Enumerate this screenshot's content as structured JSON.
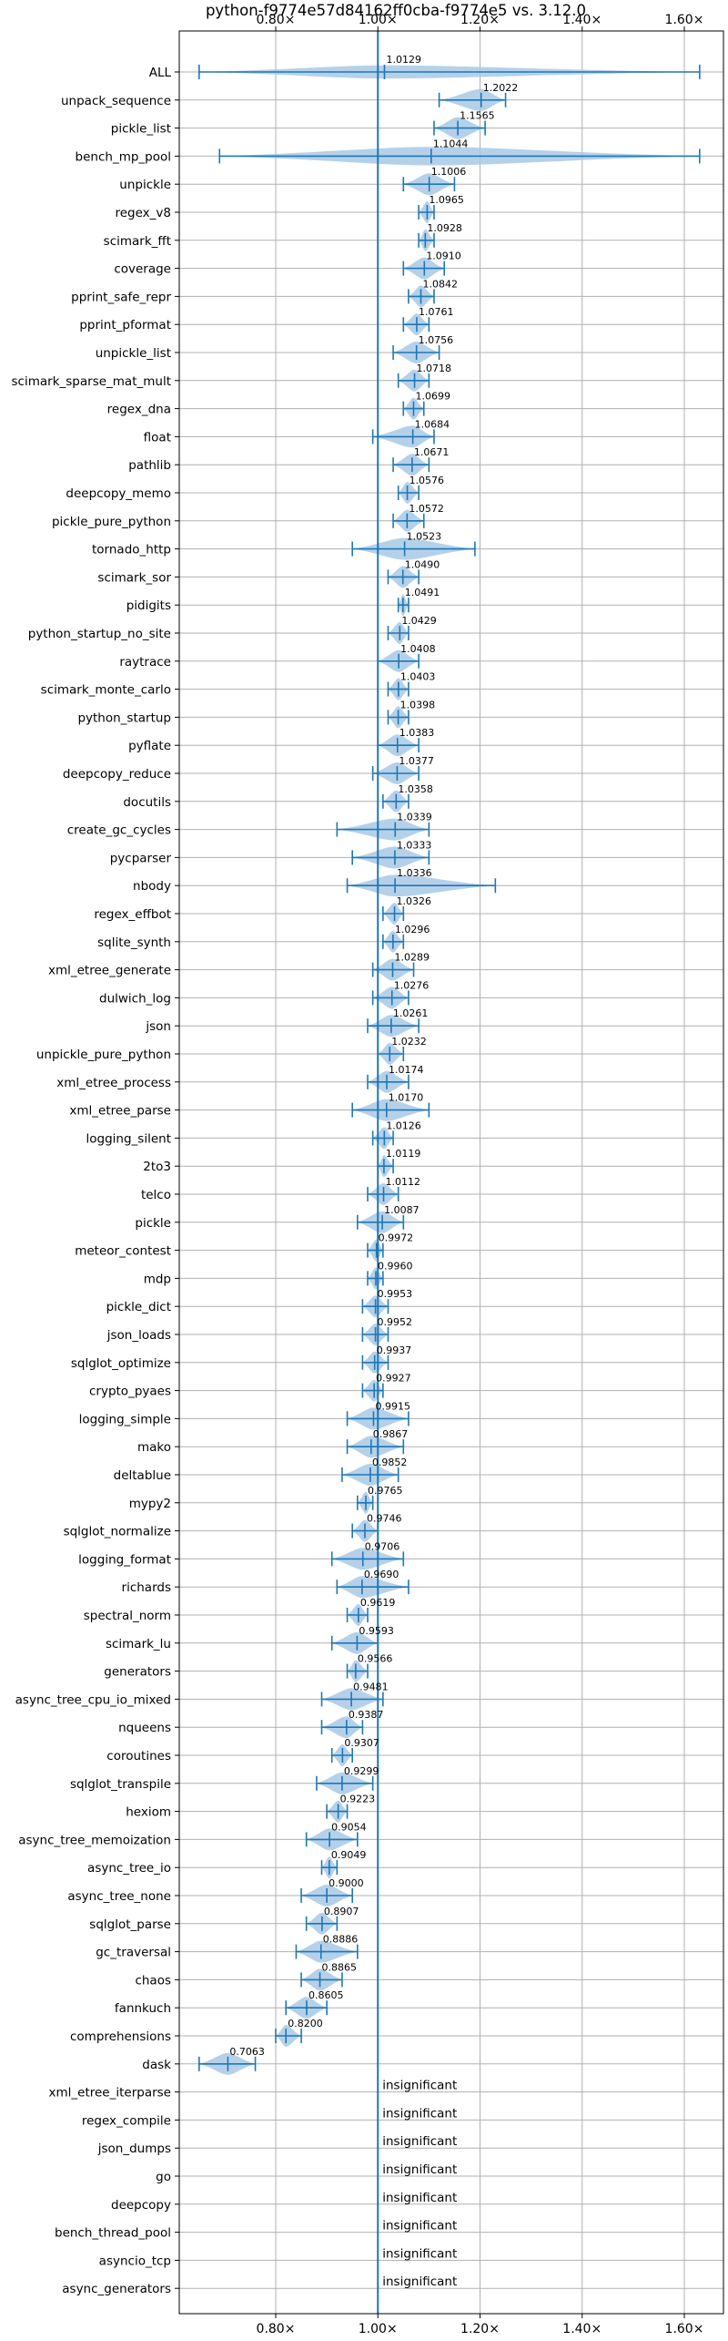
{
  "chart_data": {
    "type": "violin",
    "title": "python-f9774e57d84162ff0cba-f9774e5 vs. 3.12.0",
    "xlim": [
      0.6,
      1.65
    ],
    "xticks": [
      0.8,
      1.0,
      1.2,
      1.4,
      1.6
    ],
    "xtick_labels": [
      "0.80×",
      "1.00×",
      "1.20×",
      "1.40×",
      "1.60×"
    ],
    "reference_line": 1.0,
    "grid": true,
    "colors": {
      "violin": "#a8c9e6",
      "line": "#1f77b4",
      "grid": "#b0b0b0",
      "frame": "#000000"
    },
    "benchmarks": [
      {
        "name": "ALL",
        "value": 1.0129,
        "label": "1.0129",
        "min": 0.65,
        "max": 1.63,
        "width": 0.6
      },
      {
        "name": "unpack_sequence",
        "value": 1.2022,
        "label": "1.2022",
        "min": 1.12,
        "max": 1.25
      },
      {
        "name": "pickle_list",
        "value": 1.1565,
        "label": "1.1565",
        "min": 1.11,
        "max": 1.21
      },
      {
        "name": "bench_mp_pool",
        "value": 1.1044,
        "label": "1.1044",
        "min": 0.69,
        "max": 1.63,
        "width": 0.85
      },
      {
        "name": "unpickle",
        "value": 1.1006,
        "label": "1.1006",
        "min": 1.05,
        "max": 1.15
      },
      {
        "name": "regex_v8",
        "value": 1.0965,
        "label": "1.0965",
        "min": 1.08,
        "max": 1.11
      },
      {
        "name": "scimark_fft",
        "value": 1.0928,
        "label": "1.0928",
        "min": 1.08,
        "max": 1.11
      },
      {
        "name": "coverage",
        "value": 1.091,
        "label": "1.0910",
        "min": 1.05,
        "max": 1.13
      },
      {
        "name": "pprint_safe_repr",
        "value": 1.0842,
        "label": "1.0842",
        "min": 1.06,
        "max": 1.11
      },
      {
        "name": "pprint_pformat",
        "value": 1.0761,
        "label": "1.0761",
        "min": 1.05,
        "max": 1.1
      },
      {
        "name": "unpickle_list",
        "value": 1.0756,
        "label": "1.0756",
        "min": 1.03,
        "max": 1.12
      },
      {
        "name": "scimark_sparse_mat_mult",
        "value": 1.0718,
        "label": "1.0718",
        "min": 1.04,
        "max": 1.1
      },
      {
        "name": "regex_dna",
        "value": 1.0699,
        "label": "1.0699",
        "min": 1.05,
        "max": 1.09
      },
      {
        "name": "float",
        "value": 1.0684,
        "label": "1.0684",
        "min": 0.99,
        "max": 1.11
      },
      {
        "name": "pathlib",
        "value": 1.0671,
        "label": "1.0671",
        "min": 1.03,
        "max": 1.1
      },
      {
        "name": "deepcopy_memo",
        "value": 1.0576,
        "label": "1.0576",
        "min": 1.04,
        "max": 1.08
      },
      {
        "name": "pickle_pure_python",
        "value": 1.0572,
        "label": "1.0572",
        "min": 1.03,
        "max": 1.09
      },
      {
        "name": "tornado_http",
        "value": 1.0523,
        "label": "1.0523",
        "min": 0.95,
        "max": 1.19
      },
      {
        "name": "scimark_sor",
        "value": 1.049,
        "label": "1.0490",
        "min": 1.02,
        "max": 1.08
      },
      {
        "name": "pidigits",
        "value": 1.0491,
        "label": "1.0491",
        "min": 1.04,
        "max": 1.06
      },
      {
        "name": "python_startup_no_site",
        "value": 1.0429,
        "label": "1.0429",
        "min": 1.02,
        "max": 1.06
      },
      {
        "name": "raytrace",
        "value": 1.0408,
        "label": "1.0408",
        "min": 1.0,
        "max": 1.08
      },
      {
        "name": "scimark_monte_carlo",
        "value": 1.0403,
        "label": "1.0403",
        "min": 1.02,
        "max": 1.06
      },
      {
        "name": "python_startup",
        "value": 1.0398,
        "label": "1.0398",
        "min": 1.02,
        "max": 1.06
      },
      {
        "name": "pyflate",
        "value": 1.0383,
        "label": "1.0383",
        "min": 1.0,
        "max": 1.08
      },
      {
        "name": "deepcopy_reduce",
        "value": 1.0377,
        "label": "1.0377",
        "min": 0.99,
        "max": 1.08
      },
      {
        "name": "docutils",
        "value": 1.0358,
        "label": "1.0358",
        "min": 1.01,
        "max": 1.06
      },
      {
        "name": "create_gc_cycles",
        "value": 1.0339,
        "label": "1.0339",
        "min": 0.92,
        "max": 1.1
      },
      {
        "name": "pycparser",
        "value": 1.0333,
        "label": "1.0333",
        "min": 0.95,
        "max": 1.1
      },
      {
        "name": "nbody",
        "value": 1.0336,
        "label": "1.0336",
        "min": 0.94,
        "max": 1.23
      },
      {
        "name": "regex_effbot",
        "value": 1.0326,
        "label": "1.0326",
        "min": 1.01,
        "max": 1.05
      },
      {
        "name": "sqlite_synth",
        "value": 1.0296,
        "label": "1.0296",
        "min": 1.01,
        "max": 1.05
      },
      {
        "name": "xml_etree_generate",
        "value": 1.0289,
        "label": "1.0289",
        "min": 0.99,
        "max": 1.07
      },
      {
        "name": "dulwich_log",
        "value": 1.0276,
        "label": "1.0276",
        "min": 0.99,
        "max": 1.06
      },
      {
        "name": "json",
        "value": 1.0261,
        "label": "1.0261",
        "min": 0.98,
        "max": 1.08
      },
      {
        "name": "unpickle_pure_python",
        "value": 1.0232,
        "label": "1.0232",
        "min": 1.0,
        "max": 1.05
      },
      {
        "name": "xml_etree_process",
        "value": 1.0174,
        "label": "1.0174",
        "min": 0.98,
        "max": 1.06
      },
      {
        "name": "xml_etree_parse",
        "value": 1.017,
        "label": "1.0170",
        "min": 0.95,
        "max": 1.1
      },
      {
        "name": "logging_silent",
        "value": 1.0126,
        "label": "1.0126",
        "min": 0.99,
        "max": 1.03
      },
      {
        "name": "2to3",
        "value": 1.0119,
        "label": "1.0119",
        "min": 1.0,
        "max": 1.03
      },
      {
        "name": "telco",
        "value": 1.0112,
        "label": "1.0112",
        "min": 0.98,
        "max": 1.04
      },
      {
        "name": "pickle",
        "value": 1.0087,
        "label": "1.0087",
        "min": 0.96,
        "max": 1.05
      },
      {
        "name": "meteor_contest",
        "value": 0.9972,
        "label": "0.9972",
        "min": 0.98,
        "max": 1.01
      },
      {
        "name": "mdp",
        "value": 0.996,
        "label": "0.9960",
        "min": 0.98,
        "max": 1.01
      },
      {
        "name": "pickle_dict",
        "value": 0.9953,
        "label": "0.9953",
        "min": 0.97,
        "max": 1.02
      },
      {
        "name": "json_loads",
        "value": 0.9952,
        "label": "0.9952",
        "min": 0.97,
        "max": 1.02
      },
      {
        "name": "sqlglot_optimize",
        "value": 0.9937,
        "label": "0.9937",
        "min": 0.97,
        "max": 1.02
      },
      {
        "name": "crypto_pyaes",
        "value": 0.9927,
        "label": "0.9927",
        "min": 0.97,
        "max": 1.01
      },
      {
        "name": "logging_simple",
        "value": 0.9915,
        "label": "0.9915",
        "min": 0.94,
        "max": 1.06
      },
      {
        "name": "mako",
        "value": 0.9867,
        "label": "0.9867",
        "min": 0.94,
        "max": 1.05
      },
      {
        "name": "deltablue",
        "value": 0.9852,
        "label": "0.9852",
        "min": 0.93,
        "max": 1.04
      },
      {
        "name": "mypy2",
        "value": 0.9765,
        "label": "0.9765",
        "min": 0.96,
        "max": 0.99
      },
      {
        "name": "sqlglot_normalize",
        "value": 0.9746,
        "label": "0.9746",
        "min": 0.95,
        "max": 1.0
      },
      {
        "name": "logging_format",
        "value": 0.9706,
        "label": "0.9706",
        "min": 0.91,
        "max": 1.05
      },
      {
        "name": "richards",
        "value": 0.969,
        "label": "0.9690",
        "min": 0.92,
        "max": 1.06
      },
      {
        "name": "spectral_norm",
        "value": 0.9619,
        "label": "0.9619",
        "min": 0.94,
        "max": 0.98
      },
      {
        "name": "scimark_lu",
        "value": 0.9593,
        "label": "0.9593",
        "min": 0.91,
        "max": 1.0
      },
      {
        "name": "generators",
        "value": 0.9566,
        "label": "0.9566",
        "min": 0.94,
        "max": 0.98
      },
      {
        "name": "async_tree_cpu_io_mixed",
        "value": 0.9481,
        "label": "0.9481",
        "min": 0.89,
        "max": 1.01
      },
      {
        "name": "nqueens",
        "value": 0.9387,
        "label": "0.9387",
        "min": 0.89,
        "max": 0.97
      },
      {
        "name": "coroutines",
        "value": 0.9307,
        "label": "0.9307",
        "min": 0.91,
        "max": 0.95
      },
      {
        "name": "sqlglot_transpile",
        "value": 0.9299,
        "label": "0.9299",
        "min": 0.88,
        "max": 0.99
      },
      {
        "name": "hexiom",
        "value": 0.9223,
        "label": "0.9223",
        "min": 0.9,
        "max": 0.94
      },
      {
        "name": "async_tree_memoization",
        "value": 0.9054,
        "label": "0.9054",
        "min": 0.86,
        "max": 0.96
      },
      {
        "name": "async_tree_io",
        "value": 0.9049,
        "label": "0.9049",
        "min": 0.89,
        "max": 0.92
      },
      {
        "name": "async_tree_none",
        "value": 0.9,
        "label": "0.9000",
        "min": 0.85,
        "max": 0.95
      },
      {
        "name": "sqlglot_parse",
        "value": 0.8907,
        "label": "0.8907",
        "min": 0.86,
        "max": 0.92
      },
      {
        "name": "gc_traversal",
        "value": 0.8886,
        "label": "0.8886",
        "min": 0.84,
        "max": 0.96
      },
      {
        "name": "chaos",
        "value": 0.8865,
        "label": "0.8865",
        "min": 0.85,
        "max": 0.93
      },
      {
        "name": "fannkuch",
        "value": 0.8605,
        "label": "0.8605",
        "min": 0.82,
        "max": 0.9
      },
      {
        "name": "comprehensions",
        "value": 0.82,
        "label": "0.8200",
        "min": 0.8,
        "max": 0.85
      },
      {
        "name": "dask",
        "value": 0.7063,
        "label": "0.7063",
        "min": 0.65,
        "max": 0.76
      },
      {
        "name": "xml_etree_iterparse",
        "insignificant": true,
        "label": "insignificant"
      },
      {
        "name": "regex_compile",
        "insignificant": true,
        "label": "insignificant"
      },
      {
        "name": "json_dumps",
        "insignificant": true,
        "label": "insignificant"
      },
      {
        "name": "go",
        "insignificant": true,
        "label": "insignificant"
      },
      {
        "name": "deepcopy",
        "insignificant": true,
        "label": "insignificant"
      },
      {
        "name": "bench_thread_pool",
        "insignificant": true,
        "label": "insignificant"
      },
      {
        "name": "asyncio_tcp",
        "insignificant": true,
        "label": "insignificant"
      },
      {
        "name": "async_generators",
        "insignificant": true,
        "label": "insignificant"
      }
    ]
  }
}
